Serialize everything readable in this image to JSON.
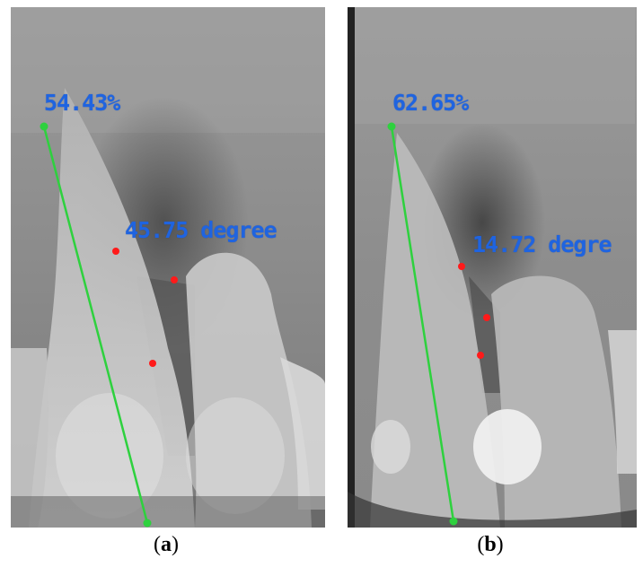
{
  "panels": [
    {
      "id": "a",
      "percentage": "54.43%",
      "angle_label": "45.75 degree",
      "caption_open": "(",
      "caption_letter": "a",
      "caption_close": ")"
    },
    {
      "id": "b",
      "percentage": "62.65%",
      "angle_label": "14.72 degre",
      "caption_open": "(",
      "caption_letter": "b",
      "caption_close": ")"
    }
  ],
  "colors": {
    "line": "#2ed13e",
    "points": "#ff1a1a",
    "text": "#1f64e0",
    "background": "#ffffff"
  }
}
